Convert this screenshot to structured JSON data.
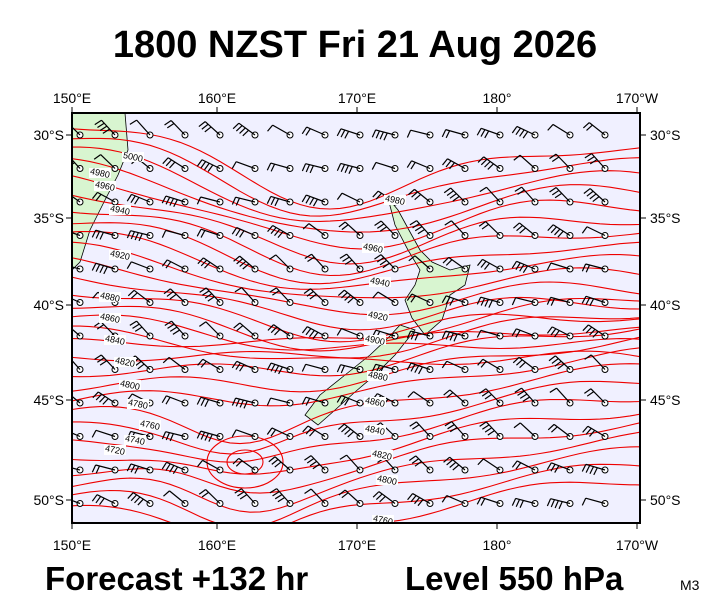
{
  "header": {
    "title": "1800 NZST Fri 21 Aug 2026"
  },
  "map": {
    "lon_labels": [
      "150°E",
      "160°E",
      "170°E",
      "180°",
      "170°W"
    ],
    "lat_labels": [
      "30°S",
      "35°S",
      "40°S",
      "45°S",
      "50°S"
    ],
    "contour_labels": [
      "5000",
      "4980",
      "4960",
      "4940",
      "4920",
      "4880",
      "4860",
      "4840",
      "4820",
      "4800",
      "4780",
      "4760",
      "4740",
      "4720",
      "4980",
      "4960",
      "4940",
      "4920",
      "4900",
      "4880",
      "4860",
      "4840",
      "4820",
      "4800",
      "4760"
    ]
  },
  "footer": {
    "forecast": "Forecast +132 hr",
    "level": "Level 550 hPa",
    "code": "M3"
  }
}
